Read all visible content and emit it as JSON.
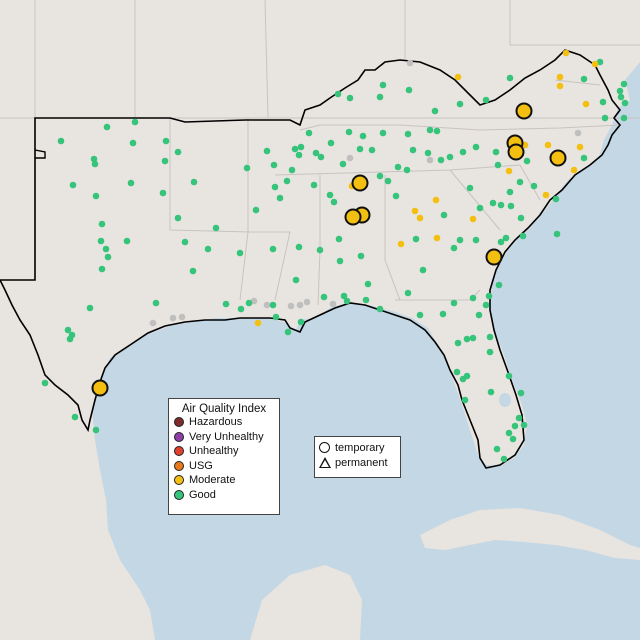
{
  "colors": {
    "land": "#e8e4e0",
    "water": "#c4d7e5",
    "good": "#35c47a",
    "moderate": "#f3c012",
    "no_data": "#bfbfbf"
  },
  "legend": {
    "title": "Air Quality Index",
    "items": [
      {
        "label": "Hazardous",
        "color": "#7e2b2b"
      },
      {
        "label": "Very Unhealthy",
        "color": "#8f3fa6"
      },
      {
        "label": "Unhealthy",
        "color": "#e0402c"
      },
      {
        "label": "USG",
        "color": "#e7791a"
      },
      {
        "label": "Moderate",
        "color": "#f3c012"
      },
      {
        "label": "Good",
        "color": "#35c47a"
      }
    ]
  },
  "shape_legend": {
    "temporary": "temporary",
    "permanent": "permanent"
  },
  "monitors": {
    "large_moderate": [
      [
        524,
        111
      ],
      [
        515,
        143
      ],
      [
        516,
        152
      ],
      [
        558,
        158
      ],
      [
        360,
        183
      ],
      [
        362,
        215
      ],
      [
        353,
        217
      ],
      [
        494,
        257
      ],
      [
        100,
        388
      ]
    ],
    "moderate_small": [
      [
        458,
        77
      ],
      [
        566,
        53
      ],
      [
        560,
        77
      ],
      [
        595,
        64
      ],
      [
        586,
        104
      ],
      [
        580,
        147
      ],
      [
        548,
        145
      ],
      [
        509,
        171
      ],
      [
        525,
        145
      ],
      [
        415,
        211
      ],
      [
        420,
        218
      ],
      [
        436,
        200
      ],
      [
        437,
        238
      ],
      [
        401,
        244
      ],
      [
        352,
        186
      ],
      [
        473,
        219
      ],
      [
        546,
        195
      ],
      [
        560,
        86
      ],
      [
        258,
        323
      ],
      [
        574,
        170
      ]
    ],
    "grey": [
      [
        410,
        63
      ],
      [
        350,
        158
      ],
      [
        430,
        160
      ],
      [
        578,
        133
      ],
      [
        182,
        317
      ],
      [
        173,
        318
      ],
      [
        153,
        323
      ],
      [
        300,
        305
      ],
      [
        307,
        302
      ],
      [
        291,
        306
      ],
      [
        333,
        304
      ],
      [
        254,
        301
      ],
      [
        267,
        305
      ]
    ],
    "good": [
      [
        107,
        127
      ],
      [
        135,
        122
      ],
      [
        61,
        141
      ],
      [
        94,
        159
      ],
      [
        95,
        164
      ],
      [
        133,
        143
      ],
      [
        166,
        141
      ],
      [
        178,
        152
      ],
      [
        165,
        161
      ],
      [
        73,
        185
      ],
      [
        96,
        196
      ],
      [
        131,
        183
      ],
      [
        163,
        193
      ],
      [
        194,
        182
      ],
      [
        178,
        218
      ],
      [
        102,
        224
      ],
      [
        127,
        241
      ],
      [
        101,
        241
      ],
      [
        106,
        249
      ],
      [
        108,
        257
      ],
      [
        185,
        242
      ],
      [
        216,
        228
      ],
      [
        208,
        249
      ],
      [
        240,
        253
      ],
      [
        193,
        271
      ],
      [
        156,
        303
      ],
      [
        102,
        269
      ],
      [
        90,
        308
      ],
      [
        68,
        330
      ],
      [
        72,
        335
      ],
      [
        70,
        339
      ],
      [
        45,
        383
      ],
      [
        75,
        417
      ],
      [
        96,
        430
      ],
      [
        274,
        165
      ],
      [
        292,
        170
      ],
      [
        295,
        149
      ],
      [
        301,
        147
      ],
      [
        316,
        153
      ],
      [
        350,
        98
      ],
      [
        383,
        85
      ],
      [
        380,
        97
      ],
      [
        409,
        90
      ],
      [
        435,
        111
      ],
      [
        460,
        104
      ],
      [
        486,
        100
      ],
      [
        510,
        78
      ],
      [
        584,
        79
      ],
      [
        600,
        62
      ],
      [
        624,
        84
      ],
      [
        620,
        91
      ],
      [
        621,
        97
      ],
      [
        625,
        103
      ],
      [
        603,
        102
      ],
      [
        605,
        118
      ],
      [
        624,
        118
      ],
      [
        520,
        182
      ],
      [
        527,
        161
      ],
      [
        534,
        186
      ],
      [
        510,
        192
      ],
      [
        501,
        205
      ],
      [
        480,
        208
      ],
      [
        493,
        203
      ],
      [
        470,
        188
      ],
      [
        463,
        152
      ],
      [
        476,
        147
      ],
      [
        496,
        152
      ],
      [
        498,
        165
      ],
      [
        450,
        157
      ],
      [
        441,
        160
      ],
      [
        428,
        153
      ],
      [
        413,
        150
      ],
      [
        407,
        170
      ],
      [
        398,
        167
      ],
      [
        396,
        196
      ],
      [
        388,
        181
      ],
      [
        380,
        176
      ],
      [
        372,
        150
      ],
      [
        360,
        149
      ],
      [
        349,
        132
      ],
      [
        363,
        136
      ],
      [
        383,
        133
      ],
      [
        408,
        134
      ],
      [
        430,
        130
      ],
      [
        437,
        131
      ],
      [
        343,
        164
      ],
      [
        321,
        157
      ],
      [
        314,
        185
      ],
      [
        275,
        187
      ],
      [
        280,
        198
      ],
      [
        256,
        210
      ],
      [
        273,
        249
      ],
      [
        296,
        280
      ],
      [
        299,
        247
      ],
      [
        320,
        250
      ],
      [
        334,
        202
      ],
      [
        339,
        239
      ],
      [
        361,
        256
      ],
      [
        366,
        300
      ],
      [
        368,
        284
      ],
      [
        380,
        309
      ],
      [
        324,
        297
      ],
      [
        344,
        296
      ],
      [
        347,
        301
      ],
      [
        420,
        315
      ],
      [
        408,
        293
      ],
      [
        423,
        270
      ],
      [
        443,
        314
      ],
      [
        454,
        303
      ],
      [
        473,
        298
      ],
      [
        479,
        315
      ],
      [
        486,
        305
      ],
      [
        489,
        296
      ],
      [
        499,
        285
      ],
      [
        506,
        238
      ],
      [
        523,
        236
      ],
      [
        521,
        218
      ],
      [
        511,
        206
      ],
      [
        557,
        234
      ],
      [
        556,
        199
      ],
      [
        584,
        158
      ],
      [
        559,
        158
      ],
      [
        476,
        240
      ],
      [
        501,
        242
      ],
      [
        460,
        240
      ],
      [
        454,
        248
      ],
      [
        458,
        343
      ],
      [
        467,
        339
      ],
      [
        473,
        338
      ],
      [
        490,
        337
      ],
      [
        490,
        352
      ],
      [
        467,
        376
      ],
      [
        457,
        372
      ],
      [
        463,
        379
      ],
      [
        465,
        400
      ],
      [
        491,
        392
      ],
      [
        509,
        376
      ],
      [
        521,
        393
      ],
      [
        519,
        418
      ],
      [
        515,
        426
      ],
      [
        509,
        433
      ],
      [
        513,
        439
      ],
      [
        524,
        425
      ],
      [
        504,
        459
      ],
      [
        497,
        449
      ],
      [
        288,
        332
      ],
      [
        301,
        322
      ],
      [
        276,
        317
      ],
      [
        273,
        305
      ],
      [
        249,
        303
      ],
      [
        241,
        309
      ],
      [
        444,
        215
      ],
      [
        416,
        239
      ],
      [
        340,
        261
      ],
      [
        330,
        195
      ],
      [
        309,
        133
      ],
      [
        287,
        181
      ],
      [
        299,
        155
      ],
      [
        338,
        94
      ],
      [
        331,
        143
      ],
      [
        267,
        151
      ],
      [
        247,
        168
      ],
      [
        226,
        304
      ]
    ]
  }
}
